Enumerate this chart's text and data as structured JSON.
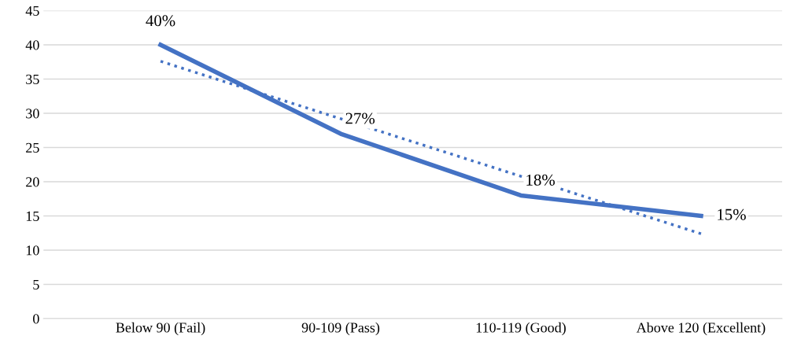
{
  "chart_data": {
    "type": "line",
    "categories": [
      "Below 90 (Fail)",
      "90-109 (Pass)",
      "110-119 (Good)",
      "Above 120 (Excellent)"
    ],
    "series": [
      {
        "color": "#4472c4",
        "values": [
          40,
          27,
          18,
          15
        ],
        "value_labels": [
          "40%",
          "27%",
          "18%",
          "15%"
        ],
        "line_style": "solid"
      },
      {
        "color": "#4472c4",
        "values": [
          37.6,
          29.2,
          20.8,
          12.4
        ],
        "line_style": "dotted"
      }
    ],
    "ylim": [
      0,
      45
    ],
    "yticks": [
      0,
      5,
      10,
      15,
      20,
      25,
      30,
      35,
      40,
      45
    ],
    "grid": "y",
    "marker": "none"
  }
}
